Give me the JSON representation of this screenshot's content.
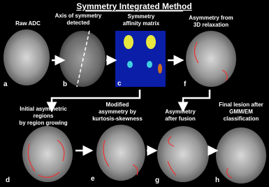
{
  "title": "Symmetry Integrated Method",
  "panels": [
    {
      "letter": "a",
      "caption": [
        "Raw ADC"
      ]
    },
    {
      "letter": "b",
      "caption": [
        "Axis of symmetry",
        "detected"
      ]
    },
    {
      "letter": "c",
      "caption": [
        "Symmetry",
        "affinity matrix"
      ]
    },
    {
      "letter": "f",
      "caption": [
        "Asymmetry from",
        "3D relaxation"
      ]
    },
    {
      "letter": "d",
      "caption": [
        "Initial asymmetric",
        "regions",
        "by region growing"
      ]
    },
    {
      "letter": "e",
      "caption": [
        "Modified",
        "asymmetry by",
        "kurtosis-skewness"
      ]
    },
    {
      "letter": "g",
      "caption": [
        "Asymmetry",
        "after fusion"
      ]
    },
    {
      "letter": "h",
      "caption": [
        "Final lesion after",
        "GMM/EM",
        "classification"
      ]
    }
  ]
}
